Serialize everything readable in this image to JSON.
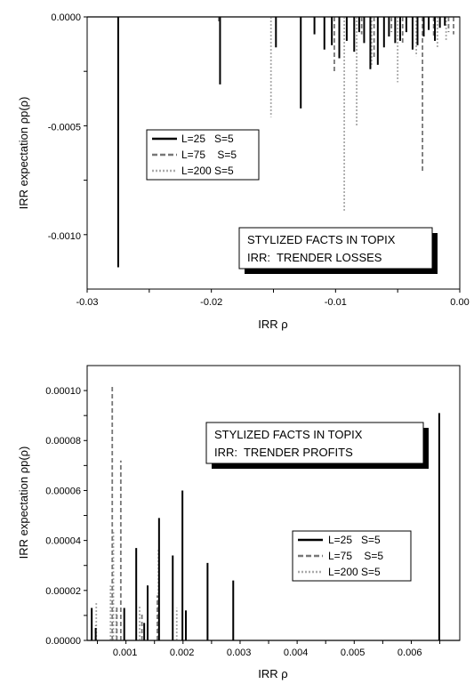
{
  "chart_data": [
    {
      "type": "line",
      "xlabel": "IRR ρ",
      "ylabel": "IRR expectation ρp(ρ)",
      "xlim": [
        -0.03,
        0.0
      ],
      "ylim": [
        -0.00125,
        0.0
      ],
      "x_ticks": [
        "-0.03",
        "-0.02",
        "-0.01",
        "0.00"
      ],
      "y_ticks": [
        "0.0000",
        "-0.0005",
        "-0.0010"
      ],
      "annotation": [
        "STYLIZED FACTS IN TOPIX",
        "IRR:  TRENDER LOSSES"
      ],
      "legend": {
        "position": "upper-left"
      },
      "series": [
        {
          "name": "L=25   S=5",
          "color": "#000000",
          "style": "solid",
          "x": [
            -0.0275,
            -0.0193,
            -0.0148,
            -0.0128,
            -0.0117,
            -0.0109,
            -0.0103,
            -0.0097,
            -0.0091,
            -0.0085,
            -0.0081,
            -0.0077,
            -0.0072,
            -0.0066,
            -0.0061,
            -0.0057,
            -0.0052,
            -0.0048,
            -0.0043,
            -0.0038,
            -0.0034,
            -0.0029,
            -0.0025,
            -0.002,
            -0.0016,
            -0.0012
          ],
          "y": [
            -0.00115,
            -0.00031,
            -0.00014,
            -0.00042,
            -8e-05,
            -0.00015,
            -0.00013,
            -0.00019,
            -0.00011,
            -0.00016,
            -7e-05,
            -0.00012,
            -0.00024,
            -0.00022,
            -0.00014,
            -9e-05,
            -0.00012,
            -0.00011,
            -7e-05,
            -0.00015,
            -0.00013,
            -9e-05,
            -6e-05,
            -0.00011,
            -5e-05,
            -4e-05
          ]
        },
        {
          "name": "L=75    S=5",
          "color": "#777777",
          "style": "dashed",
          "x": [
            -0.0194,
            -0.0101,
            -0.0079,
            -0.0069,
            -0.0055,
            -0.0046,
            -0.003,
            -0.0021,
            -0.0009,
            -0.0005
          ],
          "y": [
            -3e-05,
            -0.00025,
            -8e-05,
            -0.00019,
            -7e-05,
            -0.00012,
            -0.00071,
            -9e-05,
            -7e-05,
            -8e-05
          ]
        },
        {
          "name": "L=200 S=5",
          "color": "#aaaaaa",
          "style": "dotted",
          "x": [
            -0.0152,
            -0.0093,
            -0.0083,
            -0.0071,
            -0.005,
            -0.0035,
            -0.0018,
            -0.0011
          ],
          "y": [
            -0.00046,
            -0.00089,
            -0.0005,
            -0.00023,
            -0.0003,
            -0.00018,
            -0.00014,
            -0.00011
          ]
        }
      ]
    },
    {
      "type": "line",
      "xlabel": "IRR ρ",
      "ylabel": "IRR expectation ρp(ρ)",
      "xlim": [
        0.00032,
        0.00685
      ],
      "ylim": [
        0.0,
        0.00011
      ],
      "x_ticks": [
        "0.001",
        "0.002",
        "0.003",
        "0.004",
        "0.005",
        "0.006"
      ],
      "y_ticks": [
        "0.00000",
        "0.00002",
        "0.00004",
        "0.00006",
        "0.00008",
        "0.00010"
      ],
      "annotation": [
        "STYLIZED FACTS IN TOPIX",
        "IRR:  TRENDER PROFITS"
      ],
      "legend": {
        "position": "lower-right"
      },
      "series": [
        {
          "name": "L=25   S=5",
          "color": "#000000",
          "style": "solid",
          "x": [
            0.0004,
            0.00047,
            0.00097,
            0.00118,
            0.00132,
            0.00138,
            0.00158,
            0.00182,
            0.00199,
            0.00205,
            0.00243,
            0.00288,
            0.00649
          ],
          "y": [
            1.3e-05,
            5e-06,
            1.3e-05,
            3.7e-05,
            7e-06,
            2.2e-05,
            4.9e-05,
            3.4e-05,
            6e-05,
            1.2e-05,
            3.1e-05,
            2.4e-05,
            9.1e-05
          ]
        },
        {
          "name": "L=75    S=5",
          "color": "#777777",
          "style": "dashed",
          "x": [
            0.00047,
            0.00076,
            0.00084,
            0.00091,
            0.00128,
            0.00155
          ],
          "y": [
            6e-06,
            0.000102,
            1.4e-05,
            7.2e-05,
            1.1e-05,
            1.8e-05
          ]
        },
        {
          "name": "L=200 S=5",
          "color": "#aaaaaa",
          "style": "dotted",
          "x": [
            0.00048,
            0.00073,
            0.00078,
            0.00083,
            0.00124,
            0.00157,
            0.00189
          ],
          "y": [
            1.5e-05,
            2.2e-05,
            4.4e-05,
            1.3e-05,
            1.4e-05,
            3.7e-05,
            1.3e-05
          ]
        }
      ]
    }
  ]
}
